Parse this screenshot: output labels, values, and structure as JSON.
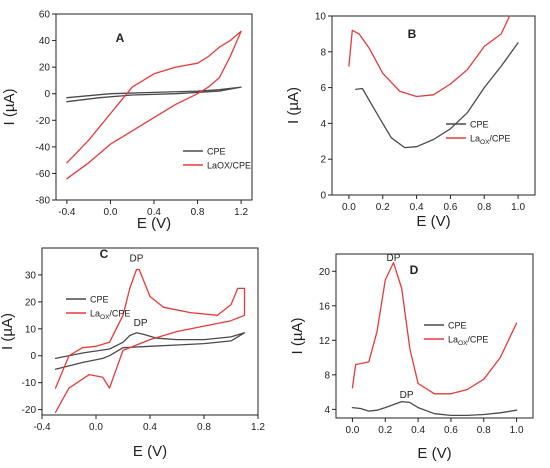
{
  "chart_data": [
    {
      "panel": "A",
      "type": "line",
      "xlabel": "E (V)",
      "ylabel": "I (µA)",
      "xlim": [
        -0.5,
        1.3
      ],
      "ylim": [
        -80,
        60
      ],
      "xticks": [
        -0.4,
        0.0,
        0.4,
        0.8,
        1.2
      ],
      "yticks": [
        -80,
        -60,
        -40,
        -20,
        0,
        20,
        40,
        60
      ],
      "xtick_labels": [
        "-0.4",
        "0.0",
        "0.4",
        "0.8",
        "1.2"
      ],
      "ytick_labels": [
        "-80",
        "-60",
        "-40",
        "-20",
        "0",
        "20",
        "40",
        "60"
      ],
      "legend": {
        "placement": "bottom-right",
        "items": [
          {
            "label": "CPE",
            "color": "#4a4a4a"
          },
          {
            "label": "LaOX/CPE",
            "color": "#e8393a"
          }
        ]
      },
      "series": [
        {
          "name": "CPE",
          "color": "#4a4a4a",
          "x": [
            -0.4,
            0.0,
            0.4,
            0.8,
            1.0,
            1.2,
            1.0,
            0.6,
            0.2,
            -0.1,
            -0.4
          ],
          "y": [
            -3,
            0,
            1,
            2,
            3,
            5,
            2,
            0,
            -1,
            -3,
            -6
          ]
        },
        {
          "name": "LaOX/CPE",
          "color": "#e8393a",
          "x": [
            -0.4,
            -0.2,
            0.0,
            0.2,
            0.4,
            0.6,
            0.8,
            0.9,
            1.0,
            1.1,
            1.2,
            1.1,
            1.0,
            0.9,
            0.8,
            0.6,
            0.4,
            0.2,
            0.0,
            -0.2,
            -0.4
          ],
          "y": [
            -52,
            -35,
            -15,
            5,
            15,
            20,
            23,
            28,
            35,
            40,
            47,
            28,
            12,
            5,
            0,
            -8,
            -18,
            -28,
            -38,
            -52,
            -64
          ]
        }
      ]
    },
    {
      "panel": "B",
      "type": "line",
      "xlabel": "E (V)",
      "ylabel": "I (µA)",
      "xlim": [
        -0.1,
        1.1
      ],
      "ylim": [
        0,
        10
      ],
      "xticks": [
        0.0,
        0.2,
        0.4,
        0.6,
        0.8,
        1.0
      ],
      "yticks": [
        0,
        2,
        4,
        6,
        8,
        10
      ],
      "xtick_labels": [
        "0.0",
        "0.2",
        "0.4",
        "0.6",
        "0.8",
        "1.0"
      ],
      "ytick_labels": [
        "0",
        "2",
        "4",
        "6",
        "8",
        "10"
      ],
      "legend": {
        "placement": "center-right",
        "items": [
          {
            "label": "CPE",
            "color": "#4a4a4a"
          },
          {
            "label": "La",
            "sub": "OX",
            "suffix": "/CPE",
            "color": "#e8393a"
          }
        ]
      },
      "series": [
        {
          "name": "CPE",
          "color": "#4a4a4a",
          "x": [
            0.04,
            0.08,
            0.15,
            0.25,
            0.33,
            0.4,
            0.5,
            0.6,
            0.7,
            0.8,
            0.9,
            1.0
          ],
          "y": [
            5.9,
            5.95,
            4.8,
            3.2,
            2.65,
            2.7,
            3.1,
            3.7,
            4.6,
            6.0,
            7.2,
            8.5
          ]
        },
        {
          "name": "LaOX/CPE",
          "color": "#e8393a",
          "x": [
            0.0,
            0.02,
            0.06,
            0.12,
            0.2,
            0.3,
            0.4,
            0.5,
            0.6,
            0.7,
            0.8,
            0.9,
            0.95
          ],
          "y": [
            7.2,
            9.2,
            9.0,
            8.2,
            6.8,
            5.8,
            5.5,
            5.6,
            6.2,
            7.0,
            8.3,
            9.0,
            10.0
          ]
        }
      ]
    },
    {
      "panel": "C",
      "type": "line",
      "xlabel": "E (V)",
      "ylabel": "I (µA)",
      "xlim": [
        -0.4,
        1.2
      ],
      "ylim": [
        -22,
        40
      ],
      "xticks": [
        -0.4,
        0.0,
        0.4,
        0.8,
        1.2
      ],
      "yticks": [
        -20,
        -10,
        0,
        10,
        20,
        30
      ],
      "xtick_labels": [
        "-0.4",
        "0.0",
        "0.4",
        "0.8",
        "1.2"
      ],
      "ytick_labels": [
        "-20",
        "-10",
        "0",
        "10",
        "20",
        "30"
      ],
      "annotations": [
        {
          "text": "DP",
          "x": 0.3,
          "y": 35
        },
        {
          "text": "DP",
          "x": 0.33,
          "y": 11
        }
      ],
      "legend": {
        "placement": "top-left",
        "items": [
          {
            "label": "CPE",
            "color": "#4a4a4a"
          },
          {
            "label": "La",
            "sub": "OX",
            "suffix": "/CPE",
            "color": "#e8393a"
          }
        ]
      },
      "series": [
        {
          "name": "CPE",
          "color": "#4a4a4a",
          "x": [
            -0.3,
            -0.1,
            0.1,
            0.2,
            0.25,
            0.3,
            0.35,
            0.45,
            0.6,
            0.8,
            1.0,
            1.1,
            1.0,
            0.8,
            0.6,
            0.4,
            0.2,
            0.1,
            0.05,
            -0.1,
            -0.3
          ],
          "y": [
            -1,
            1,
            2.5,
            5,
            7.5,
            8.5,
            8,
            6.5,
            6,
            6,
            7,
            8.5,
            5.5,
            4.5,
            4,
            3.5,
            3,
            0,
            -1,
            -2.5,
            -5
          ]
        },
        {
          "name": "LaOX/CPE",
          "color": "#e8393a",
          "x": [
            -0.3,
            -0.2,
            -0.1,
            0.0,
            0.1,
            0.2,
            0.25,
            0.3,
            0.32,
            0.4,
            0.5,
            0.7,
            0.9,
            1.0,
            1.05,
            1.1,
            1.1,
            1.0,
            0.8,
            0.6,
            0.4,
            0.2,
            0.1,
            0.05,
            -0.05,
            -0.2,
            -0.3
          ],
          "y": [
            -12,
            0,
            3,
            3.5,
            5,
            15,
            25,
            32,
            32,
            22,
            18,
            16,
            15,
            19,
            25,
            25,
            15,
            13,
            11,
            9,
            6,
            2,
            -12,
            -8,
            -7,
            -12,
            -21
          ]
        }
      ]
    },
    {
      "panel": "D",
      "type": "line",
      "xlabel": "E (V)",
      "ylabel": "I (µA)",
      "xlim": [
        -0.1,
        1.1
      ],
      "ylim": [
        3,
        22
      ],
      "xticks": [
        0.0,
        0.2,
        0.4,
        0.6,
        0.8,
        1.0
      ],
      "yticks": [
        4,
        8,
        12,
        16,
        20
      ],
      "xtick_labels": [
        "0.0",
        "0.2",
        "0.4",
        "0.6",
        "0.8",
        "1.0"
      ],
      "ytick_labels": [
        "4",
        "8",
        "12",
        "16",
        "20"
      ],
      "annotations": [
        {
          "text": "DP",
          "x": 0.25,
          "y": 21.2
        },
        {
          "text": "DP",
          "x": 0.33,
          "y": 5.3
        }
      ],
      "legend": {
        "placement": "center-right",
        "items": [
          {
            "label": "CPE",
            "color": "#4a4a4a"
          },
          {
            "label": "La",
            "sub": "OX",
            "suffix": "/CPE",
            "color": "#e8393a"
          }
        ]
      },
      "series": [
        {
          "name": "CPE",
          "color": "#4a4a4a",
          "x": [
            0.0,
            0.05,
            0.1,
            0.15,
            0.2,
            0.3,
            0.35,
            0.4,
            0.5,
            0.6,
            0.7,
            0.8,
            0.9,
            1.0
          ],
          "y": [
            4.2,
            4.1,
            3.8,
            3.9,
            4.2,
            4.9,
            4.8,
            4.2,
            3.5,
            3.3,
            3.3,
            3.4,
            3.6,
            3.9
          ]
        },
        {
          "name": "LaOX/CPE",
          "color": "#e8393a",
          "x": [
            0.0,
            0.02,
            0.05,
            0.1,
            0.15,
            0.2,
            0.25,
            0.3,
            0.35,
            0.4,
            0.5,
            0.6,
            0.7,
            0.8,
            0.9,
            1.0
          ],
          "y": [
            6.5,
            9.2,
            9.3,
            9.5,
            13,
            19,
            21,
            18,
            11,
            7,
            5.8,
            5.8,
            6.3,
            7.5,
            10,
            14
          ]
        }
      ]
    }
  ]
}
